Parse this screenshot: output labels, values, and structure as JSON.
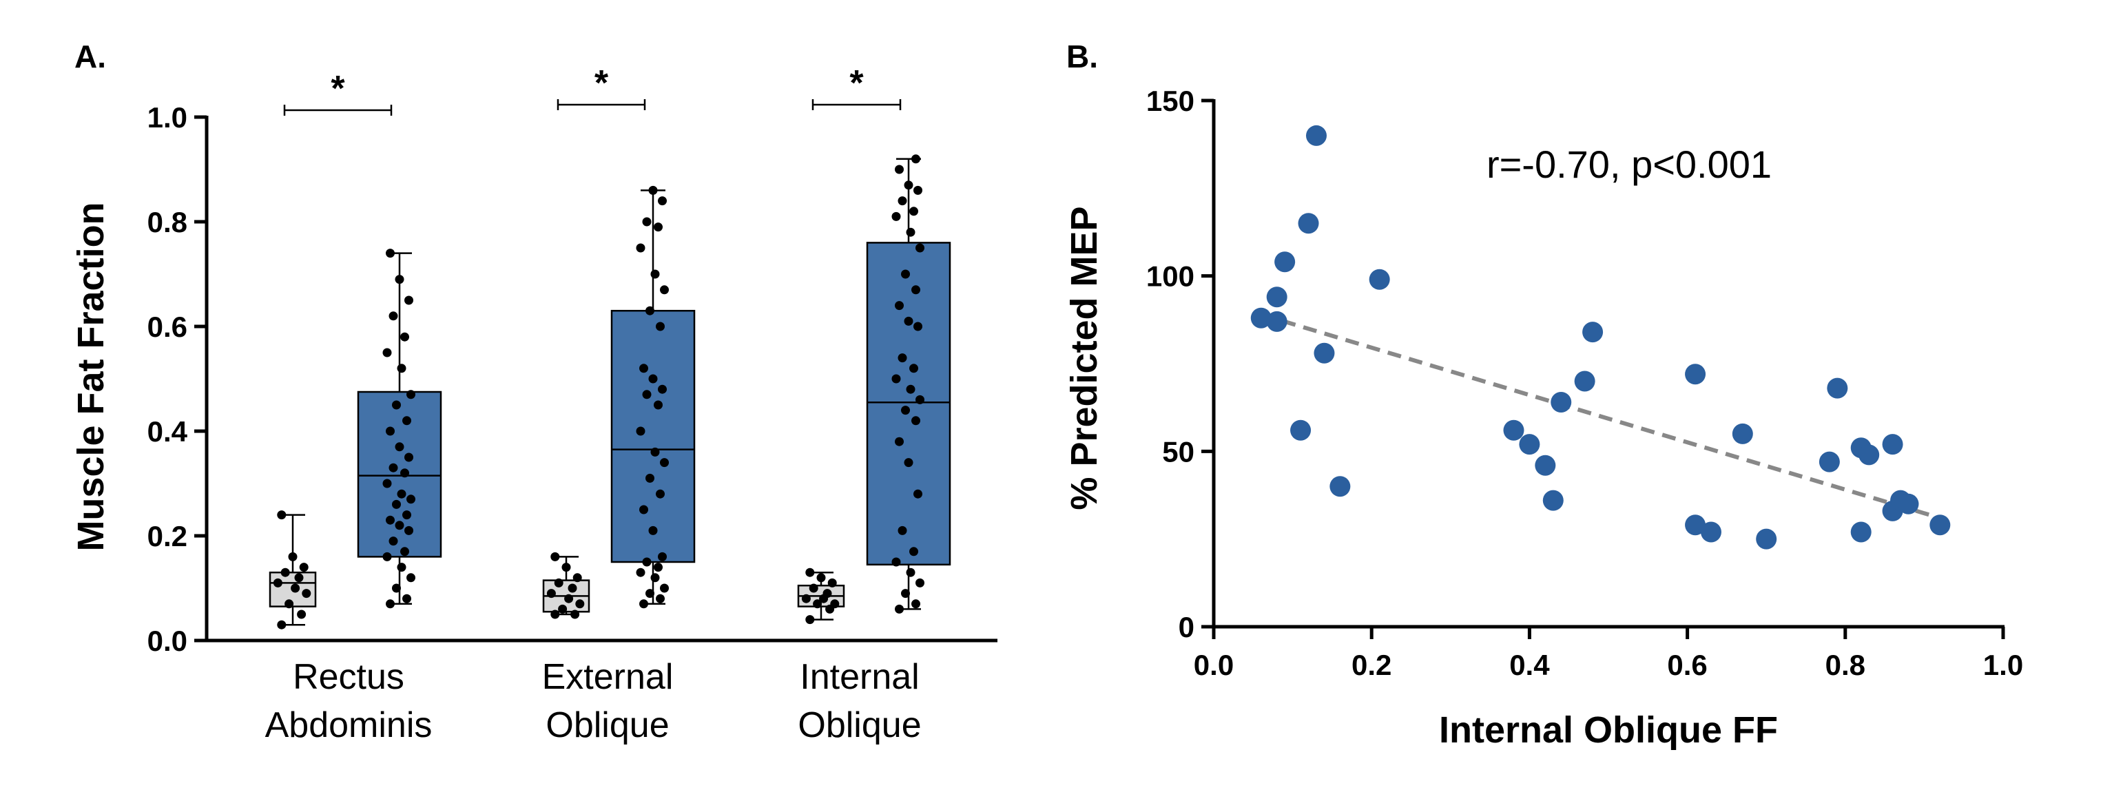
{
  "chart_data": [
    {
      "panel": "A.",
      "type": "box",
      "ylabel": "Muscle Fat Fraction",
      "ylim": [
        0,
        1.0
      ],
      "yticks": [
        "0.0",
        "0.2",
        "0.4",
        "0.6",
        "0.8",
        "1.0"
      ],
      "categories": [
        {
          "line1": "Rectus",
          "line2": "Abdominis"
        },
        {
          "line1": "External",
          "line2": "Oblique"
        },
        {
          "line1": "Internal",
          "line2": "Oblique"
        }
      ],
      "significance": [
        "*",
        "*",
        "*"
      ],
      "colors": {
        "control": "#d9d9d9",
        "patient": "#4372a8"
      },
      "groups": [
        [
          {
            "group": "control",
            "min": 0.03,
            "q1": 0.065,
            "median": 0.11,
            "q3": 0.13,
            "max": 0.24,
            "points": [
              0.03,
              0.05,
              0.07,
              0.09,
              0.1,
              0.11,
              0.12,
              0.13,
              0.14,
              0.16,
              0.24
            ]
          },
          {
            "group": "patient",
            "min": 0.07,
            "q1": 0.16,
            "median": 0.315,
            "q3": 0.475,
            "max": 0.74,
            "points": [
              0.07,
              0.08,
              0.1,
              0.12,
              0.14,
              0.16,
              0.17,
              0.19,
              0.21,
              0.22,
              0.23,
              0.24,
              0.26,
              0.27,
              0.28,
              0.3,
              0.32,
              0.33,
              0.35,
              0.37,
              0.4,
              0.42,
              0.45,
              0.47,
              0.52,
              0.55,
              0.58,
              0.62,
              0.65,
              0.69,
              0.74
            ]
          }
        ],
        [
          {
            "group": "control",
            "min": 0.05,
            "q1": 0.055,
            "median": 0.085,
            "q3": 0.115,
            "max": 0.16,
            "points": [
              0.05,
              0.05,
              0.06,
              0.07,
              0.08,
              0.09,
              0.1,
              0.11,
              0.12,
              0.14,
              0.16
            ]
          },
          {
            "group": "patient",
            "min": 0.07,
            "q1": 0.15,
            "median": 0.365,
            "q3": 0.63,
            "max": 0.86,
            "points": [
              0.07,
              0.08,
              0.09,
              0.1,
              0.12,
              0.13,
              0.14,
              0.15,
              0.16,
              0.21,
              0.25,
              0.28,
              0.31,
              0.34,
              0.36,
              0.4,
              0.45,
              0.47,
              0.48,
              0.5,
              0.52,
              0.6,
              0.63,
              0.67,
              0.7,
              0.75,
              0.79,
              0.8,
              0.84,
              0.86
            ]
          }
        ],
        [
          {
            "group": "control",
            "min": 0.04,
            "q1": 0.065,
            "median": 0.085,
            "q3": 0.105,
            "max": 0.13,
            "points": [
              0.04,
              0.06,
              0.07,
              0.07,
              0.08,
              0.08,
              0.09,
              0.1,
              0.11,
              0.12,
              0.13
            ]
          },
          {
            "group": "patient",
            "min": 0.06,
            "q1": 0.145,
            "median": 0.455,
            "q3": 0.76,
            "max": 0.92,
            "points": [
              0.06,
              0.07,
              0.09,
              0.11,
              0.13,
              0.15,
              0.17,
              0.21,
              0.28,
              0.34,
              0.38,
              0.42,
              0.44,
              0.46,
              0.48,
              0.5,
              0.52,
              0.54,
              0.6,
              0.61,
              0.64,
              0.67,
              0.7,
              0.75,
              0.78,
              0.81,
              0.82,
              0.84,
              0.86,
              0.87,
              0.9,
              0.92
            ]
          }
        ]
      ]
    },
    {
      "panel": "B.",
      "type": "scatter",
      "xlabel": "Internal Oblique FF",
      "ylabel": "% Predicted MEP",
      "xlim": [
        0,
        1.0
      ],
      "ylim": [
        0,
        150
      ],
      "xticks": [
        "0.0",
        "0.2",
        "0.4",
        "0.6",
        "0.8",
        "1.0"
      ],
      "yticks": [
        "0",
        "50",
        "100",
        "150"
      ],
      "annotation": "r=-0.70, p<0.001",
      "point_color": "#2b5f9e",
      "trend_color": "#888888",
      "trendline": {
        "x": [
          0.06,
          0.92
        ],
        "y": [
          89,
          31
        ]
      },
      "points": [
        {
          "x": 0.06,
          "y": 88
        },
        {
          "x": 0.08,
          "y": 94
        },
        {
          "x": 0.08,
          "y": 87
        },
        {
          "x": 0.09,
          "y": 104
        },
        {
          "x": 0.11,
          "y": 56
        },
        {
          "x": 0.12,
          "y": 115
        },
        {
          "x": 0.13,
          "y": 140
        },
        {
          "x": 0.14,
          "y": 78
        },
        {
          "x": 0.16,
          "y": 40
        },
        {
          "x": 0.21,
          "y": 99
        },
        {
          "x": 0.38,
          "y": 56
        },
        {
          "x": 0.4,
          "y": 52
        },
        {
          "x": 0.42,
          "y": 46
        },
        {
          "x": 0.43,
          "y": 36
        },
        {
          "x": 0.44,
          "y": 64
        },
        {
          "x": 0.47,
          "y": 70
        },
        {
          "x": 0.48,
          "y": 84
        },
        {
          "x": 0.61,
          "y": 72
        },
        {
          "x": 0.61,
          "y": 29
        },
        {
          "x": 0.63,
          "y": 27
        },
        {
          "x": 0.67,
          "y": 55
        },
        {
          "x": 0.7,
          "y": 25
        },
        {
          "x": 0.78,
          "y": 47
        },
        {
          "x": 0.79,
          "y": 68
        },
        {
          "x": 0.82,
          "y": 51
        },
        {
          "x": 0.82,
          "y": 27
        },
        {
          "x": 0.83,
          "y": 49
        },
        {
          "x": 0.86,
          "y": 52
        },
        {
          "x": 0.86,
          "y": 33
        },
        {
          "x": 0.87,
          "y": 36
        },
        {
          "x": 0.88,
          "y": 35
        },
        {
          "x": 0.92,
          "y": 29
        }
      ]
    }
  ]
}
